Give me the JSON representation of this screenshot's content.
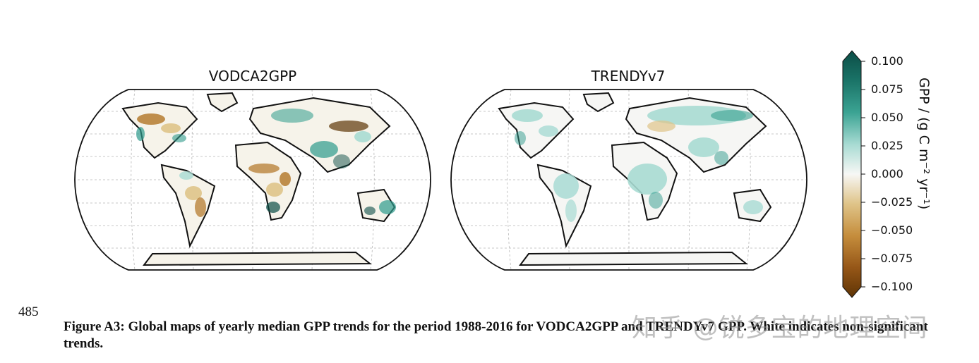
{
  "figure": {
    "maps": [
      {
        "title": "VODCA2GPP"
      },
      {
        "title": "TRENDYv7"
      }
    ],
    "colorbar": {
      "label": "GPP / (g C m⁻² yr⁻¹)",
      "ticks": [
        "0.100",
        "0.075",
        "0.050",
        "0.025",
        "0.000",
        "−0.025",
        "−0.050",
        "−0.075",
        "−0.100"
      ],
      "range": [
        -0.1,
        0.1
      ],
      "colors": {
        "max": "#0c4d46",
        "high": "#2e9a8b",
        "mid_high": "#a8dbd3",
        "zero": "#f7f7f5",
        "mid_low": "#dfc489",
        "low": "#b27424",
        "min": "#5e3405"
      }
    }
  },
  "page_number": "485",
  "caption": "Figure A3: Global maps of yearly median GPP trends for the period 1988-2016 for VODCA2GPP and TRENDYv7 GPP. White indicates non-significant trends.",
  "watermark": "知乎 @锐多宝的地理空间"
}
